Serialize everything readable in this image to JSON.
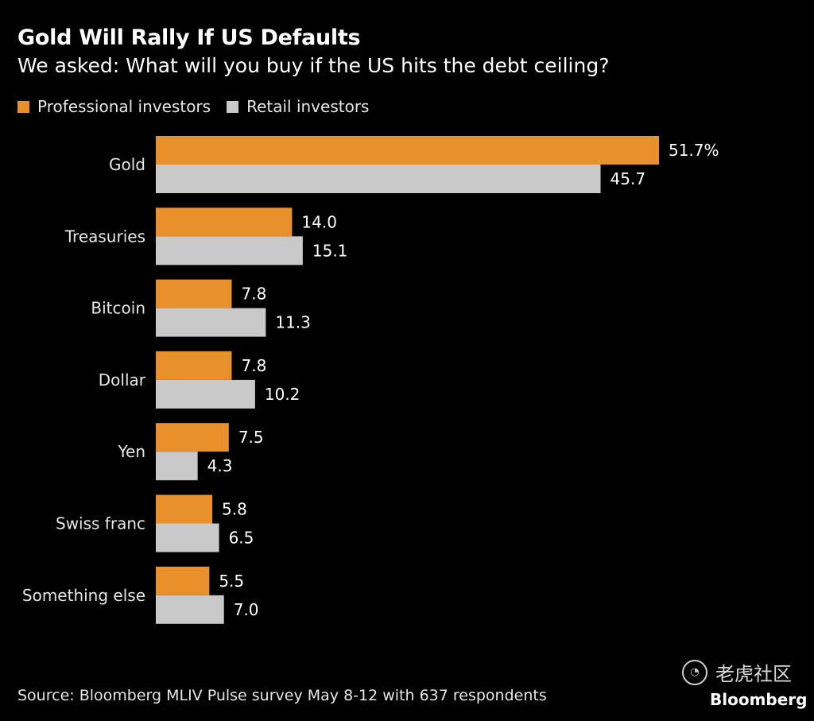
{
  "header": {
    "title": "Gold Will Rally If US Defaults",
    "subtitle": "We asked: What will you buy if the US hits the debt ceiling?"
  },
  "legend": {
    "professional": "Professional investors",
    "retail": "Retail investors"
  },
  "footer": {
    "source": "Source: Bloomberg MLIV Pulse survey May 8-12 with 637 respondents",
    "brand": "Bloomberg",
    "watermark_text": "老虎社区"
  },
  "colors": {
    "professional": "#e8902c",
    "retail": "#c9c9c9",
    "background": "#000000",
    "text": "#ffffff"
  },
  "chart_data": {
    "type": "bar",
    "orientation": "horizontal",
    "categories": [
      "Gold",
      "Treasuries",
      "Bitcoin",
      "Dollar",
      "Yen",
      "Swiss franc",
      "Something else"
    ],
    "series": [
      {
        "name": "Professional investors",
        "values": [
          51.7,
          14.0,
          7.8,
          7.8,
          7.5,
          5.8,
          5.5
        ],
        "labels": [
          "51.7%",
          "14.0",
          "7.8",
          "7.8",
          "7.5",
          "5.8",
          "5.5"
        ]
      },
      {
        "name": "Retail investors",
        "values": [
          45.7,
          15.1,
          11.3,
          10.2,
          4.3,
          6.5,
          7.0
        ],
        "labels": [
          "45.7",
          "15.1",
          "11.3",
          "10.2",
          "4.3",
          "6.5",
          "7.0"
        ]
      }
    ],
    "xlim": [
      0,
      51.7
    ],
    "grid": false,
    "legend_position": "top-left"
  }
}
